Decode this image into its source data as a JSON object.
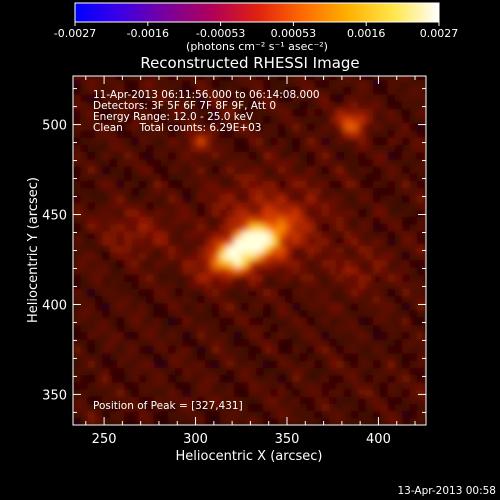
{
  "chart_data": {
    "type": "heatmap",
    "title": "Reconstructed RHESSI Image",
    "xlabel": "Heliocentric X (arcsec)",
    "ylabel": "Heliocentric Y (arcsec)",
    "xlim": [
      233,
      426
    ],
    "ylim": [
      333,
      527
    ],
    "xticks": [
      250,
      300,
      350,
      400
    ],
    "yticks": [
      350,
      400,
      450,
      500
    ],
    "colorbar": {
      "range": [
        -0.0027,
        0.0027
      ],
      "ticks": [
        "-0.0027",
        "-0.0016",
        "-0.00053",
        "0.00053",
        "0.0016",
        "0.0027"
      ],
      "units_label": "(photons cm⁻² s⁻¹ asec⁻²)",
      "colormap": [
        "#0000ff",
        "#3c00e6",
        "#7a009c",
        "#b0005a",
        "#e02010",
        "#ff6a00",
        "#ffb000",
        "#ffe64a",
        "#ffffff"
      ]
    },
    "annotations": [
      "11-Apr-2013 06:11:56.000 to 06:14:08.000",
      "Detectors: 3F 5F 6F 7F 8F 9F, Att 0",
      "Energy Range: 12.0 - 25.0 keV",
      "Clean     Total counts: 6.29E+03"
    ],
    "peak_label": "Position of Peak = [327,431]",
    "peak": [
      327,
      431
    ]
  },
  "footer": {
    "date": "13-Apr-2013 00:58"
  }
}
